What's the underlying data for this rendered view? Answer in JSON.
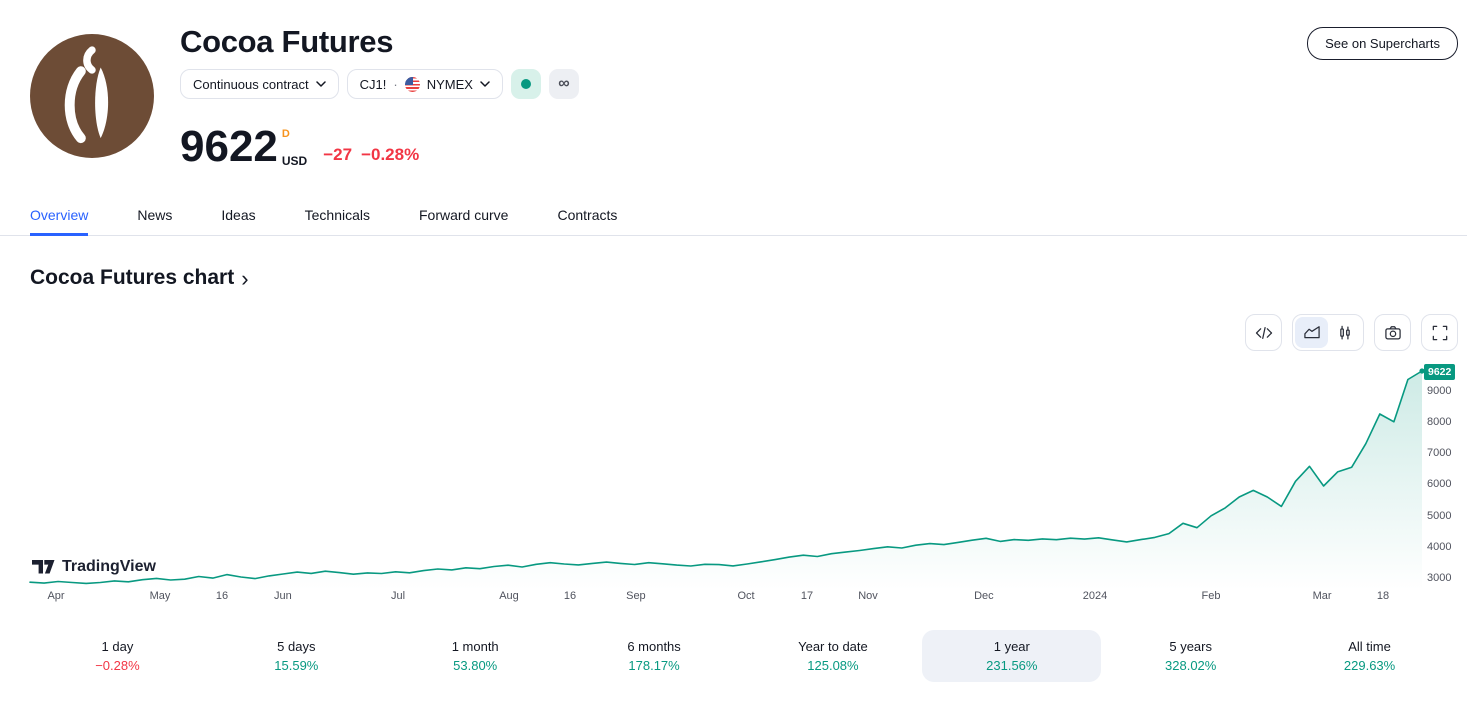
{
  "header": {
    "title": "Cocoa Futures",
    "contract_selector_label": "Continuous contract",
    "symbol": "CJ1!",
    "dot_separator": "·",
    "exchange": "NYMEX",
    "price": "9622",
    "timeframe_badge": "D",
    "currency": "USD",
    "change_abs": "−27",
    "change_pct": "−0.28%",
    "supercharts_button_label": "See on Supercharts",
    "market_status": "open",
    "infinity_badge": "∞"
  },
  "tabs": [
    {
      "label": "Overview",
      "active": true
    },
    {
      "label": "News",
      "active": false
    },
    {
      "label": "Ideas",
      "active": false
    },
    {
      "label": "Technicals",
      "active": false
    },
    {
      "label": "Forward curve",
      "active": false
    },
    {
      "label": "Contracts",
      "active": false
    }
  ],
  "section_heading": {
    "label": "Cocoa Futures chart",
    "chevron": "›"
  },
  "chart_toolbar": {
    "icons": [
      "code-icon",
      "area-chart-icon",
      "candlestick-icon",
      "camera-icon",
      "fullscreen-icon"
    ],
    "active_chart_type": "area"
  },
  "watermark_label": "TradingView",
  "colors": {
    "accent_blue": "#2962ff",
    "up_green": "#089981",
    "down_red": "#f23645",
    "timeframe_orange": "#f7941e",
    "logo_brown": "#6d4c36",
    "selected_bg": "#eef1f7"
  },
  "periods": [
    {
      "label": "1 day",
      "value": "−0.28%",
      "dir": "down",
      "selected": false
    },
    {
      "label": "5 days",
      "value": "15.59%",
      "dir": "up",
      "selected": false
    },
    {
      "label": "1 month",
      "value": "53.80%",
      "dir": "up",
      "selected": false
    },
    {
      "label": "6 months",
      "value": "178.17%",
      "dir": "up",
      "selected": false
    },
    {
      "label": "Year to date",
      "value": "125.08%",
      "dir": "up",
      "selected": false
    },
    {
      "label": "1 year",
      "value": "231.56%",
      "dir": "up",
      "selected": true
    },
    {
      "label": "5 years",
      "value": "328.02%",
      "dir": "up",
      "selected": false
    },
    {
      "label": "All time",
      "value": "229.63%",
      "dir": "up",
      "selected": false
    }
  ],
  "chart_data": {
    "type": "area",
    "last_value": 9622,
    "last_label": "9622",
    "line_color": "#089981",
    "fill_top": "rgba(8,153,129,0.20)",
    "fill_bottom": "rgba(8,153,129,0)",
    "ylim": [
      2800,
      9750
    ],
    "y_ticks": [
      {
        "label": "9000",
        "value": 9000
      },
      {
        "label": "8000",
        "value": 8000
      },
      {
        "label": "7000",
        "value": 7000
      },
      {
        "label": "6000",
        "value": 6000
      },
      {
        "label": "5000",
        "value": 5000
      },
      {
        "label": "4000",
        "value": 4000
      },
      {
        "label": "3000",
        "value": 3000
      }
    ],
    "x_ticks": [
      {
        "label": "Apr",
        "f": 0.0187
      },
      {
        "label": "May",
        "f": 0.0934
      },
      {
        "label": "16",
        "f": 0.1379
      },
      {
        "label": "Jun",
        "f": 0.1817
      },
      {
        "label": "Jul",
        "f": 0.2644
      },
      {
        "label": "Aug",
        "f": 0.3441
      },
      {
        "label": "16",
        "f": 0.3879
      },
      {
        "label": "Sep",
        "f": 0.4353
      },
      {
        "label": "Oct",
        "f": 0.5144
      },
      {
        "label": "17",
        "f": 0.5582
      },
      {
        "label": "Nov",
        "f": 0.602
      },
      {
        "label": "Dec",
        "f": 0.6853
      },
      {
        "label": "2024",
        "f": 0.7651
      },
      {
        "label": "Feb",
        "f": 0.8484
      },
      {
        "label": "Mar",
        "f": 0.9282
      },
      {
        "label": "18",
        "f": 0.972
      }
    ],
    "values": [
      2880,
      2850,
      2900,
      2870,
      2840,
      2870,
      2920,
      2890,
      2960,
      3000,
      2950,
      2975,
      3060,
      3010,
      3120,
      3045,
      2995,
      3080,
      3140,
      3200,
      3160,
      3230,
      3185,
      3135,
      3175,
      3155,
      3210,
      3180,
      3250,
      3300,
      3270,
      3340,
      3310,
      3380,
      3420,
      3365,
      3450,
      3500,
      3460,
      3430,
      3480,
      3520,
      3480,
      3445,
      3500,
      3465,
      3425,
      3395,
      3450,
      3440,
      3400,
      3460,
      3530,
      3600,
      3680,
      3740,
      3700,
      3790,
      3840,
      3890,
      3950,
      4010,
      3970,
      4060,
      4110,
      4080,
      4150,
      4220,
      4280,
      4180,
      4240,
      4215,
      4260,
      4235,
      4285,
      4255,
      4295,
      4230,
      4165,
      4240,
      4310,
      4430,
      4760,
      4620,
      5000,
      5250,
      5600,
      5810,
      5600,
      5300,
      6100,
      6580,
      5950,
      6400,
      6550,
      7300,
      8250,
      8000,
      9350,
      9622
    ]
  }
}
